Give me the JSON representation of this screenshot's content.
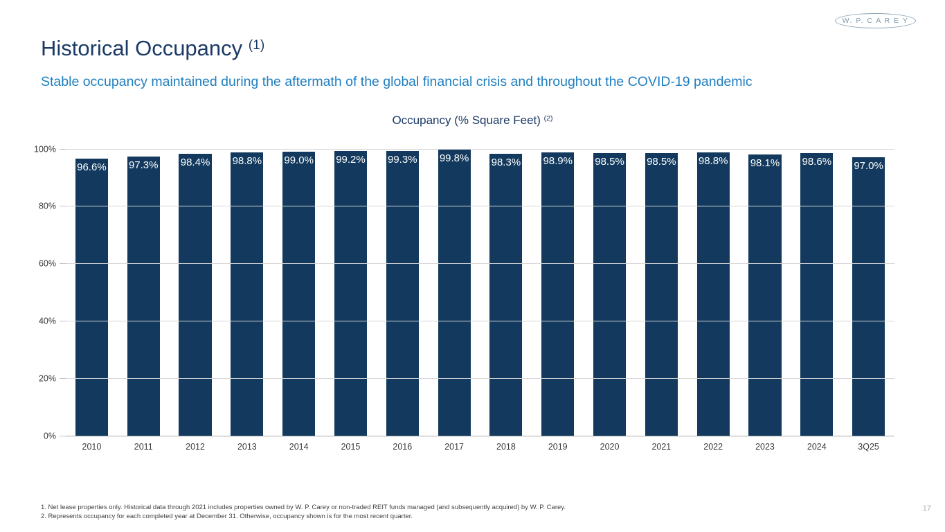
{
  "page": {
    "title": "Historical Occupancy",
    "title_superscript": "(1)",
    "subtitle": "Stable occupancy maintained during the aftermath of the global financial crisis and throughout the COVID-19 pandemic",
    "logo_text": "W. P. C A R E Y",
    "page_number": "17"
  },
  "footnotes": [
    "1. Net lease properties only. Historical data through 2021 includes properties owned by W. P. Carey or non-traded REIT funds managed (and subsequently acquired) by W. P. Carey.",
    "2. Represents occupancy for each completed year at December 31. Otherwise, occupancy shown is for the most recent quarter."
  ],
  "colors": {
    "bar": "#133A5E",
    "title_navy": "#1B3A66",
    "subtitle_blue": "#1F7FC0",
    "gridline": "#D6D6D6",
    "axis_line": "#A6A6A6",
    "axis_text": "#3A3A3A",
    "bar_label_text": "#FFFFFF",
    "logo": "#7E99AB",
    "page_number": "#ACACAC"
  },
  "chart_data": {
    "type": "bar",
    "title": "Occupancy (% Square Feet)",
    "title_superscript": "(2)",
    "categories": [
      "2010",
      "2011",
      "2012",
      "2013",
      "2014",
      "2015",
      "2016",
      "2017",
      "2018",
      "2019",
      "2020",
      "2021",
      "2022",
      "2023",
      "2024",
      "3Q25"
    ],
    "values": [
      96.6,
      97.3,
      98.4,
      98.8,
      99.0,
      99.2,
      99.3,
      99.8,
      98.3,
      98.9,
      98.5,
      98.5,
      98.8,
      98.1,
      98.6,
      97.0
    ],
    "value_labels": [
      "96.6%",
      "97.3%",
      "98.4%",
      "98.8%",
      "99.0%",
      "99.2%",
      "99.3%",
      "99.8%",
      "98.3%",
      "98.9%",
      "98.5%",
      "98.5%",
      "98.8%",
      "98.1%",
      "98.6%",
      "97.0%"
    ],
    "xlabel": "",
    "ylabel": "",
    "ylim": [
      0,
      100
    ],
    "y_tick_values": [
      0,
      20,
      40,
      60,
      80,
      100
    ],
    "y_tick_labels": [
      "0%",
      "20%",
      "40%",
      "60%",
      "80%",
      "100%"
    ],
    "grid": true,
    "legend": "none",
    "bar_label_position": "inside-top"
  }
}
